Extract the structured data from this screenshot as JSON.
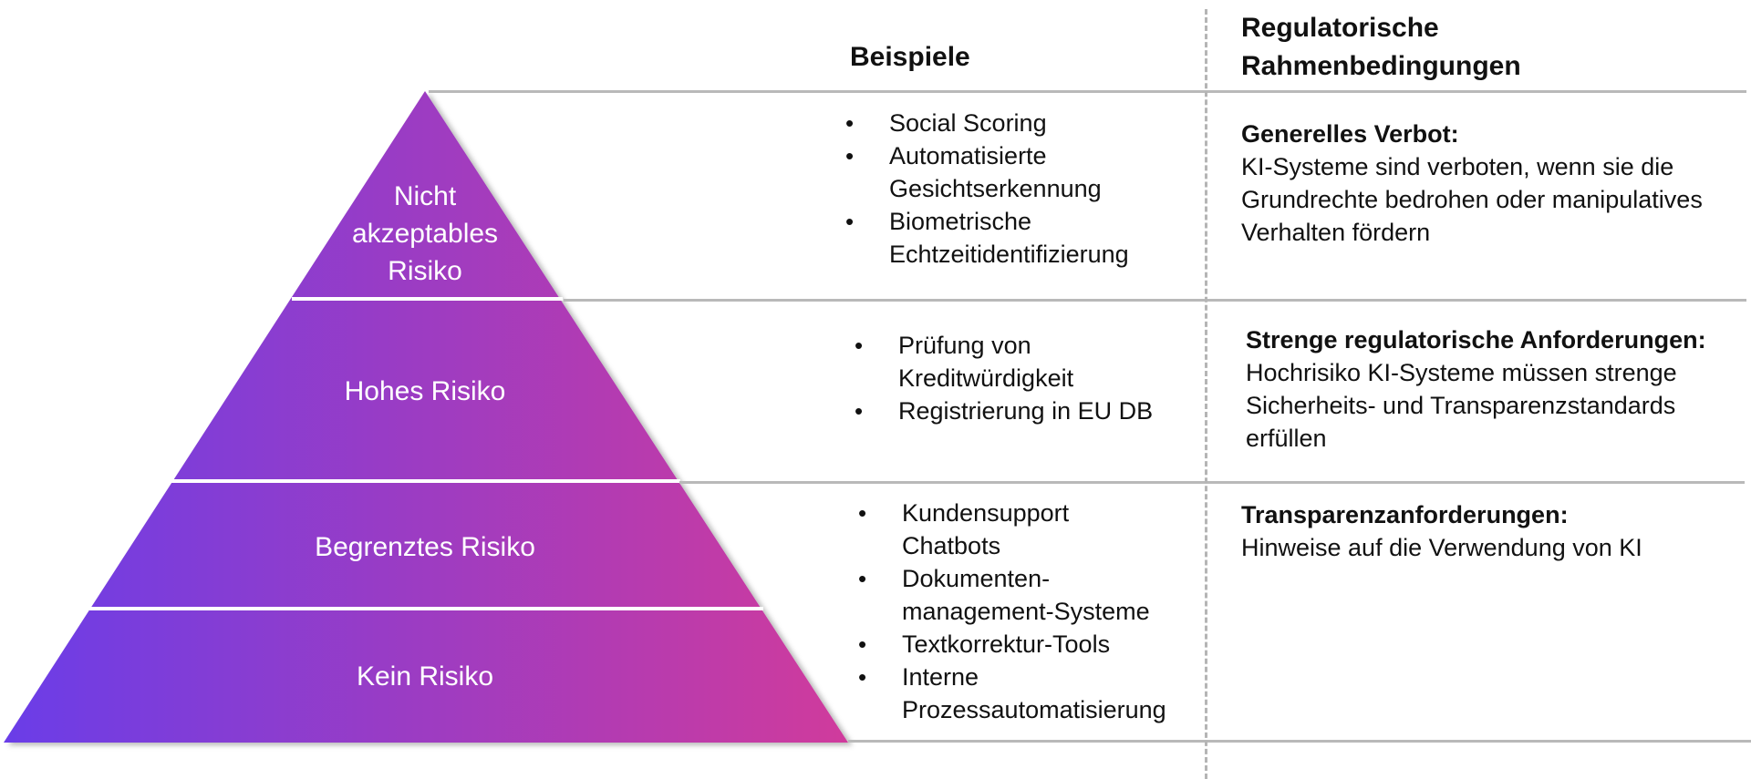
{
  "headers": {
    "examples": "Beispiele",
    "regulatory": [
      "Regulatorische",
      "Rahmenbedingungen"
    ]
  },
  "colors": {
    "gradient_start": "#6a3de8",
    "gradient_end": "#d03a9c",
    "rule_line": "#b9b9b9",
    "tier_separator": "#ffffff"
  },
  "tiers": [
    {
      "label": [
        "Nicht",
        "akzeptables",
        "Risiko"
      ],
      "examples": [
        "Social Scoring",
        "Automatisierte Gesichtserkennung",
        "Biometrische Echtzeitidentifizierung"
      ],
      "reg_title": "Generelles Verbot:",
      "reg_text": "KI-Systeme sind verboten, wenn sie die Grundrechte bedrohen oder manipulatives Verhalten fördern"
    },
    {
      "label": [
        "Hohes Risiko"
      ],
      "examples": [
        "Prüfung von Kreditwürdigkeit",
        "Registrierung in EU DB"
      ],
      "reg_title": "Strenge regulatorische Anforderungen:",
      "reg_text": "Hochrisiko KI-Systeme müssen strenge Sicherheits- und Transparenzstandards erfüllen"
    },
    {
      "label": [
        "Begrenztes Risiko"
      ],
      "examples": [
        "Kundensupport Chatbots",
        "Dokumenten-management-Systeme",
        "Textkorrektur-Tools",
        "Interne Prozessautomatisierung"
      ],
      "reg_title": "Transparenzanforderungen:",
      "reg_text": "Hinweise auf die Verwendung von KI"
    },
    {
      "label": [
        "Kein Risiko"
      ],
      "examples": [],
      "reg_title": "",
      "reg_text": ""
    }
  ]
}
